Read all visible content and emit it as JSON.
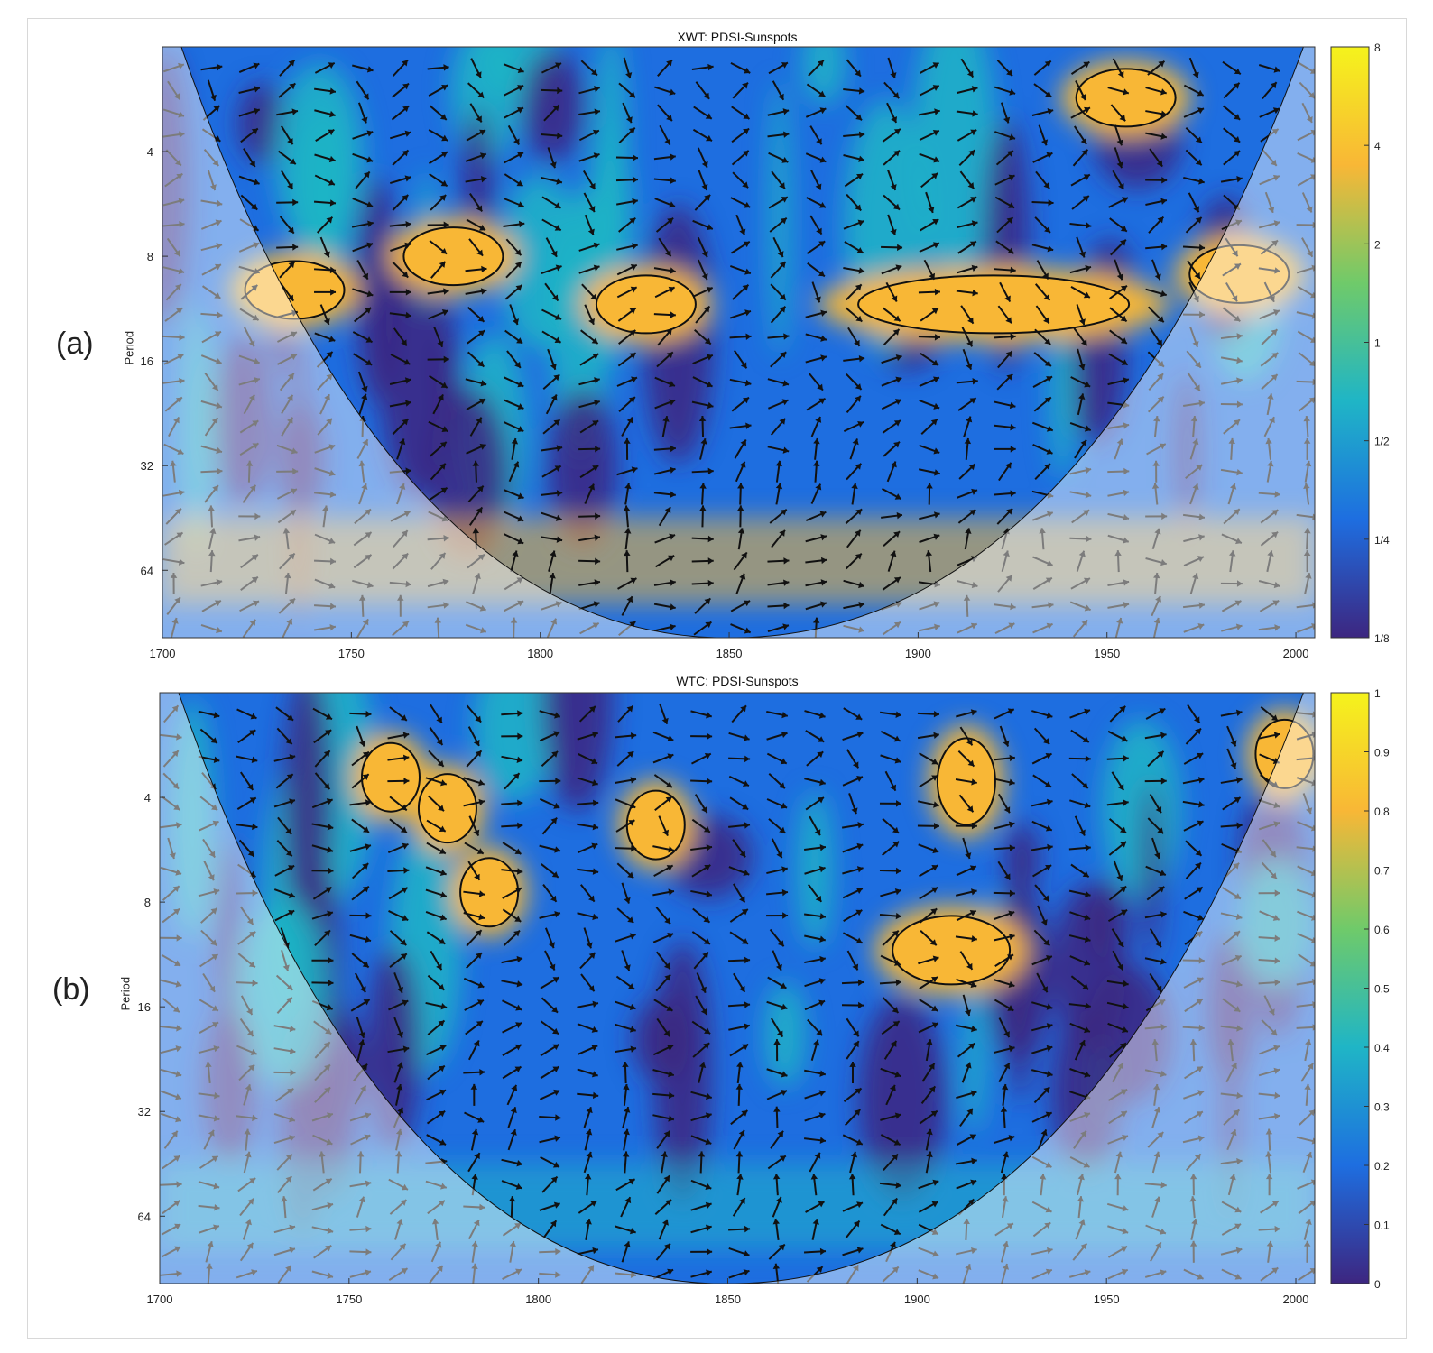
{
  "colors": {
    "dark": "#3d2680",
    "blue": "#1e6ee0",
    "cyan": "#1fb5c6",
    "green": "#6fca6a",
    "orange": "#f8b736",
    "yellow": "#f5f31c"
  },
  "panels": [
    {
      "label": "(a)",
      "chart_data": {
        "type": "heatmap",
        "title": "XWT: PDSI-Sunspots",
        "xlabel": "",
        "ylabel": "Period",
        "xlim": [
          1700,
          2005
        ],
        "ylim": [
          2,
          100
        ],
        "y_scale": "log2",
        "x_ticks": [
          "1700",
          "1750",
          "1800",
          "1850",
          "1900",
          "1950",
          "2000"
        ],
        "y_ticks": [
          "4",
          "8",
          "16",
          "32",
          "64"
        ],
        "colorbar_ticks": [
          "8",
          "4",
          "2",
          "1",
          "1/2",
          "1/4",
          "1/8"
        ],
        "colorbar_range": [
          "1/8",
          "8"
        ],
        "significant_regions": [
          {
            "x": 1735,
            "period": 10
          },
          {
            "x": 1777,
            "period": 8
          },
          {
            "x": 1828,
            "period": 11
          },
          {
            "x": 1920,
            "period": 11
          },
          {
            "x": 1955,
            "period": 2.8
          },
          {
            "x": 1985,
            "period": 9
          }
        ],
        "cone_of_influence": true,
        "phase_arrows": true
      }
    },
    {
      "label": "(b)",
      "chart_data": {
        "type": "heatmap",
        "title": "WTC: PDSI-Sunspots",
        "xlabel": "",
        "ylabel": "Period",
        "xlim": [
          1700,
          2005
        ],
        "ylim": [
          2,
          100
        ],
        "y_scale": "log2",
        "x_ticks": [
          "1700",
          "1750",
          "1800",
          "1850",
          "1900",
          "1950",
          "2000"
        ],
        "y_ticks": [
          "4",
          "8",
          "16",
          "32",
          "64"
        ],
        "colorbar_ticks": [
          "1",
          "0.9",
          "0.8",
          "0.7",
          "0.6",
          "0.5",
          "0.4",
          "0.3",
          "0.2",
          "0.1",
          "0"
        ],
        "colorbar_range": [
          0,
          1
        ],
        "significant_regions": [
          {
            "x": 1761,
            "period": 3.5
          },
          {
            "x": 1776,
            "period": 4.3
          },
          {
            "x": 1787,
            "period": 7.5
          },
          {
            "x": 1831,
            "period": 4.8
          },
          {
            "x": 1909,
            "period": 11
          },
          {
            "x": 1913,
            "period": 3.6
          },
          {
            "x": 1997,
            "period": 3
          }
        ],
        "cone_of_influence": true,
        "phase_arrows": true
      }
    }
  ]
}
